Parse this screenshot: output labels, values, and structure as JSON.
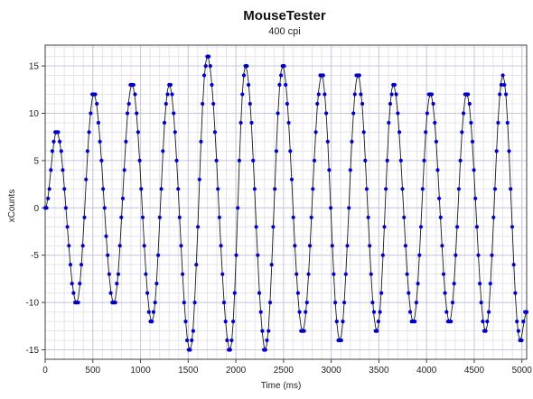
{
  "chart_data": {
    "type": "scatter",
    "title": "MouseTester",
    "subtitle": "400 cpi",
    "xlabel": "Time (ms)",
    "ylabel": "xCounts",
    "xlim": [
      0,
      5050
    ],
    "ylim": [
      -16,
      17.2
    ],
    "x_ticks": [
      0,
      500,
      1000,
      1500,
      2000,
      2500,
      3000,
      3500,
      4000,
      4500,
      5000
    ],
    "y_ticks": [
      -15,
      -10,
      -5,
      0,
      5,
      10,
      15
    ],
    "x_tick_labels": [
      "0",
      "500",
      "1000",
      "1500",
      "2000",
      "2500",
      "3000",
      "3500",
      "4000",
      "4500",
      "5000"
    ],
    "y_tick_labels": [
      "-15",
      "-10",
      "-5",
      "0",
      "5",
      "10",
      "15"
    ],
    "x_minor_step": 100,
    "y_minor_step": 1,
    "grid": true,
    "legend": "none",
    "colors": {
      "points": "#0000cc",
      "line": "#1a1a1a",
      "grid_major": "#c8c8e0",
      "grid_minor": "#e4e4f0",
      "axis": "#404040"
    },
    "series": [
      {
        "role": "sampled counts (markers) with smoothed fit (thin line)",
        "extrema": [
          {
            "x": 0,
            "y": 0
          },
          {
            "x": 120,
            "y": 8
          },
          {
            "x": 330,
            "y": -10
          },
          {
            "x": 510,
            "y": 12
          },
          {
            "x": 720,
            "y": -10
          },
          {
            "x": 910,
            "y": 13
          },
          {
            "x": 1120,
            "y": -12
          },
          {
            "x": 1300,
            "y": 13
          },
          {
            "x": 1520,
            "y": -15
          },
          {
            "x": 1700,
            "y": 16
          },
          {
            "x": 1940,
            "y": -15
          },
          {
            "x": 2100,
            "y": 15
          },
          {
            "x": 2310,
            "y": -15
          },
          {
            "x": 2490,
            "y": 15
          },
          {
            "x": 2700,
            "y": -13
          },
          {
            "x": 2900,
            "y": 14
          },
          {
            "x": 3090,
            "y": -14
          },
          {
            "x": 3280,
            "y": 14
          },
          {
            "x": 3480,
            "y": -13
          },
          {
            "x": 3650,
            "y": 13
          },
          {
            "x": 3860,
            "y": -12
          },
          {
            "x": 4040,
            "y": 12
          },
          {
            "x": 4240,
            "y": -12
          },
          {
            "x": 4420,
            "y": 12
          },
          {
            "x": 4620,
            "y": -13
          },
          {
            "x": 4800,
            "y": 14
          },
          {
            "x": 4980,
            "y": -14
          },
          {
            "x": 5050,
            "y": -11
          }
        ]
      }
    ]
  }
}
